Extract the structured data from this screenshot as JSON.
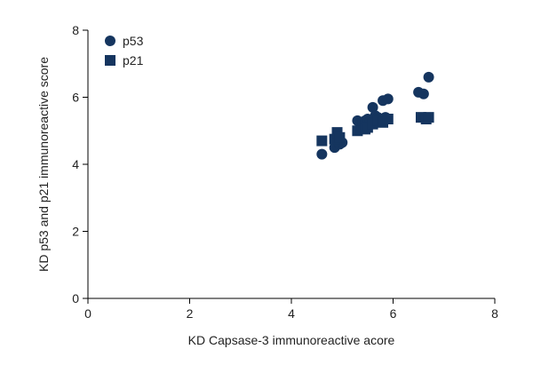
{
  "chart_data": {
    "type": "scatter",
    "title": "",
    "xlabel": "KD Capsase-3 immunoreactive acore",
    "ylabel": "KD p53 and p21 immunoreactive score",
    "xlim": [
      0,
      8
    ],
    "ylim": [
      0,
      8
    ],
    "xticks": [
      0,
      2,
      4,
      6,
      8
    ],
    "yticks": [
      0,
      2,
      4,
      6,
      8
    ],
    "grid": false,
    "legend_position": "top-left",
    "series": [
      {
        "name": "p53",
        "marker": "circle",
        "color": "#15355f",
        "points": [
          [
            4.6,
            4.3
          ],
          [
            4.85,
            4.5
          ],
          [
            4.95,
            4.6
          ],
          [
            5.0,
            4.65
          ],
          [
            5.3,
            5.3
          ],
          [
            5.4,
            5.25
          ],
          [
            5.45,
            5.3
          ],
          [
            5.5,
            5.35
          ],
          [
            5.55,
            5.3
          ],
          [
            5.6,
            5.7
          ],
          [
            5.65,
            5.45
          ],
          [
            5.7,
            5.4
          ],
          [
            5.8,
            5.9
          ],
          [
            5.85,
            5.4
          ],
          [
            5.9,
            5.95
          ],
          [
            6.5,
            6.15
          ],
          [
            6.6,
            6.1
          ],
          [
            6.7,
            6.6
          ]
        ]
      },
      {
        "name": "p21",
        "marker": "square",
        "color": "#15355f",
        "points": [
          [
            4.6,
            4.7
          ],
          [
            4.85,
            4.75
          ],
          [
            4.9,
            4.95
          ],
          [
            4.95,
            4.8
          ],
          [
            5.3,
            5.0
          ],
          [
            5.45,
            5.05
          ],
          [
            5.5,
            5.1
          ],
          [
            5.6,
            5.2
          ],
          [
            5.7,
            5.3
          ],
          [
            5.8,
            5.25
          ],
          [
            5.9,
            5.35
          ],
          [
            6.55,
            5.4
          ],
          [
            6.65,
            5.35
          ],
          [
            6.7,
            5.4
          ]
        ]
      }
    ]
  }
}
